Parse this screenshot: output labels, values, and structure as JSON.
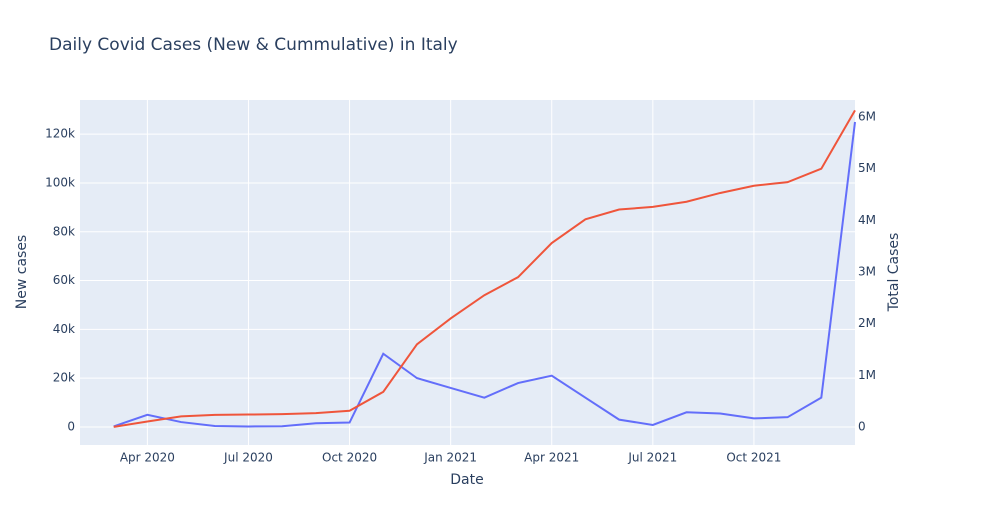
{
  "chart_data": {
    "type": "line",
    "title": "Daily Covid Cases (New & Cummulative) in Italy",
    "x_label": "Date",
    "y_label": "New cases",
    "y2_label": "Total Cases",
    "x": [
      "2020-02",
      "2020-03",
      "2020-04",
      "2020-05",
      "2020-06",
      "2020-07",
      "2020-08",
      "2020-09",
      "2020-10",
      "2020-11",
      "2020-12",
      "2021-01",
      "2021-02",
      "2021-03",
      "2021-04",
      "2021-05",
      "2021-06",
      "2021-07",
      "2021-08",
      "2021-09",
      "2021-10",
      "2021-11",
      "2021-12"
    ],
    "series": [
      {
        "color": "#636efa",
        "values": [
          200,
          5000,
          2000,
          400,
          200,
          300,
          1500,
          1800,
          30000,
          20000,
          16000,
          12000,
          18000,
          21000,
          12000,
          3000,
          800,
          6000,
          5500,
          3500,
          4000,
          12000,
          125000
        ]
      },
      {
        "color": "#EF553B",
        "axis": "y2",
        "values": [
          1000,
          105000,
          205000,
          233000,
          240000,
          247000,
          268000,
          314000,
          679000,
          1600000,
          2100000,
          2550000,
          2900000,
          3560000,
          4020000,
          4210000,
          4260000,
          4360000,
          4530000,
          4670000,
          4740000,
          5000000,
          6130000
        ]
      }
    ],
    "xlim": [
      "2020-02",
      "2021-12"
    ],
    "xticks": [
      {
        "value": "2020-04",
        "label": "Apr 2020"
      },
      {
        "value": "2020-07",
        "label": "Jul 2020"
      },
      {
        "value": "2020-10",
        "label": "Oct 2020"
      },
      {
        "value": "2021-01",
        "label": "Jan 2021"
      },
      {
        "value": "2021-04",
        "label": "Apr 2021"
      },
      {
        "value": "2021-07",
        "label": "Jul 2021"
      },
      {
        "value": "2021-10",
        "label": "Oct 2021"
      }
    ],
    "ylim": [
      -7400,
      134000
    ],
    "yticks": [
      0,
      {
        "value": 20000,
        "label": "20k"
      },
      {
        "value": 40000,
        "label": "40k"
      },
      {
        "value": 60000,
        "label": "60k"
      },
      {
        "value": 80000,
        "label": "80k"
      },
      {
        "value": 100000,
        "label": "100k"
      },
      {
        "value": 120000,
        "label": "120k"
      }
    ],
    "y2lim": [
      -350000,
      6330000
    ],
    "y2ticks": [
      0,
      {
        "value": 1000000,
        "label": "1M"
      },
      {
        "value": 2000000,
        "label": "2M"
      },
      {
        "value": 3000000,
        "label": "3M"
      },
      {
        "value": 4000000,
        "label": "4M"
      },
      {
        "value": 5000000,
        "label": "5M"
      },
      {
        "value": 6000000,
        "label": "6M"
      }
    ],
    "grid": true
  }
}
